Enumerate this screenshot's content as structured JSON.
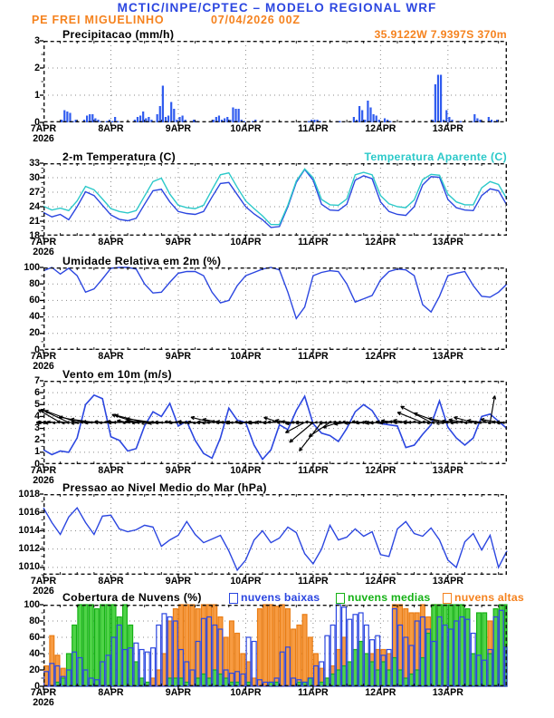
{
  "header": {
    "title": "MCTIC/INPE/CPTEC – MODELO REGIONAL WRF",
    "station": "PE FREI MIGUELINHO",
    "run_datetime": "07/04/2026 00Z",
    "location": "35.9122W 7.9397S 370m"
  },
  "colors": {
    "blue": "#2b46e0",
    "bar_blue": "#2f5bef",
    "cyan": "#2cc9c9",
    "orange": "#f5821e",
    "orange_fill": "#f79b42",
    "orange_stroke": "#e97d15",
    "green": "#15b115",
    "green_fill": "#4fd348",
    "green_stroke": "#15b115",
    "grid": "#8a8a8a",
    "frame": "#111111",
    "black": "#000000"
  },
  "x_axis": {
    "hours_total": 165,
    "line_step_hours": 3,
    "day_labels": [
      "7APR",
      "8APR",
      "9APR",
      "10APR",
      "11APR",
      "12APR",
      "13APR"
    ],
    "year_label": "2026"
  },
  "chart_data": [
    {
      "type": "bar",
      "id": "precipitation",
      "title": "Precipitacao (mm/h)",
      "right_label": "35.9122W 7.9397S 370m",
      "ylim": [
        0,
        3
      ],
      "yticks": [
        0,
        1,
        2,
        3
      ],
      "hourly_values": [
        0,
        0,
        0,
        0,
        0,
        0,
        0.1,
        0.45,
        0.4,
        0.35,
        0.05,
        0.1,
        0,
        0,
        0.1,
        0.25,
        0.3,
        0.3,
        0.15,
        0.1,
        0.05,
        0,
        0.05,
        0.1,
        0.05,
        0.2,
        0.05,
        0,
        0,
        0,
        0,
        0,
        0.1,
        0.2,
        0.25,
        0.4,
        0.15,
        0.2,
        0.1,
        0,
        0.3,
        0.6,
        1.35,
        0.2,
        0.25,
        0.75,
        0.5,
        0.1,
        0.2,
        0.25,
        0.1,
        0,
        0.05,
        0.1,
        0.05,
        0,
        0,
        0,
        0,
        0,
        0.1,
        0.2,
        0.25,
        0.1,
        0.15,
        0.2,
        0.1,
        0.55,
        0.5,
        0.5,
        0.1,
        0.05,
        0,
        0,
        0.05,
        0.1,
        0,
        0,
        0,
        0,
        0,
        0,
        0,
        0,
        0,
        0,
        0,
        0,
        0,
        0,
        0,
        0,
        0,
        0,
        0.05,
        0.1,
        0.1,
        0.1,
        0.05,
        0,
        0,
        0,
        0,
        0,
        0.05,
        0.05,
        0,
        0,
        0,
        0,
        0.2,
        0.1,
        0.6,
        0.45,
        0.1,
        0.8,
        0.55,
        0.3,
        0.25,
        0.1,
        0,
        0.15,
        0.1,
        0.05,
        0,
        0,
        0,
        0,
        0,
        0,
        0,
        0,
        0,
        0,
        0,
        0,
        0,
        0,
        0.1,
        1.4,
        1.75,
        1.75,
        0.1,
        0.45,
        0.2,
        0.1,
        0,
        0.05,
        0.05,
        0,
        0,
        0,
        0.05,
        0.3,
        0.15,
        0.1,
        0,
        0,
        0.2,
        0.1,
        0.05,
        0.1,
        0,
        0,
        0
      ]
    },
    {
      "type": "line",
      "id": "temperature",
      "title": "2-m Temperatura (C)",
      "right_label": "Temperatura Aparente (C)",
      "ylim": [
        18,
        33
      ],
      "yticks": [
        18,
        21,
        24,
        27,
        30,
        33
      ],
      "series": [
        {
          "name": "2-m Temperatura (C)",
          "color_key": "blue",
          "values": [
            22.8,
            21.9,
            22.4,
            21.3,
            24.0,
            27.1,
            26.3,
            24.3,
            22.3,
            21.4,
            21.1,
            21.6,
            24.5,
            27.3,
            27.6,
            25.0,
            23.0,
            22.6,
            22.4,
            23.0,
            26.0,
            28.8,
            29.0,
            26.5,
            24.0,
            22.5,
            21.3,
            19.7,
            19.9,
            24.0,
            29.0,
            31.7,
            29.5,
            24.5,
            23.3,
            23.2,
            24.5,
            29.5,
            30.4,
            29.8,
            25.0,
            23.0,
            22.4,
            22.2,
            24.0,
            28.5,
            30.2,
            30.1,
            25.5,
            23.8,
            23.3,
            23.2,
            26.3,
            27.7,
            27.3,
            24.3
          ]
        },
        {
          "name": "Temperatura Aparente (C)",
          "color_key": "cyan",
          "values": [
            24.1,
            23.3,
            23.7,
            23.2,
            25.2,
            28.2,
            27.5,
            25.6,
            23.6,
            23.0,
            22.7,
            23.2,
            26.2,
            29.2,
            29.9,
            26.6,
            24.3,
            23.8,
            23.6,
            24.3,
            27.5,
            30.6,
            31.0,
            28.0,
            25.2,
            23.6,
            22.1,
            20.3,
            20.3,
            24.3,
            29.3,
            31.8,
            30.0,
            25.5,
            24.4,
            24.3,
            25.6,
            30.6,
            31.1,
            30.6,
            26.3,
            24.6,
            24.0,
            23.8,
            25.4,
            29.6,
            30.7,
            30.5,
            26.6,
            25.0,
            24.4,
            24.4,
            27.9,
            29.2,
            28.6,
            25.6
          ]
        }
      ]
    },
    {
      "type": "line",
      "id": "humidity",
      "title": "Umidade Relativa em 2m (%)",
      "ylim": [
        0,
        100
      ],
      "yticks": [
        0,
        20,
        40,
        60,
        80,
        100
      ],
      "series": [
        {
          "name": "Umidade Relativa em 2m",
          "color_key": "blue",
          "values": [
            96,
            100,
            92,
            99,
            90,
            70,
            74,
            86,
            99,
            100,
            100,
            98,
            80,
            69,
            70,
            82,
            93,
            95,
            95,
            90,
            70,
            57,
            60,
            78,
            90,
            94,
            98,
            100,
            97,
            70,
            38,
            52,
            90,
            94,
            96,
            95,
            80,
            58,
            62,
            66,
            85,
            95,
            98,
            97,
            90,
            55,
            46,
            65,
            90,
            93,
            95,
            78,
            65,
            64,
            70,
            80
          ]
        }
      ]
    },
    {
      "type": "line+arrows",
      "id": "wind",
      "title": "Vento em 10m (m/s)",
      "ylim": [
        0,
        7
      ],
      "yticks": [
        0,
        1,
        2,
        3,
        4,
        5,
        6,
        7
      ],
      "arrow_baseline": 3.5,
      "series": [
        {
          "name": "Vento em 10m",
          "color_key": "blue",
          "values": [
            1.2,
            0.8,
            1.1,
            1.0,
            2.2,
            5.0,
            5.8,
            5.5,
            2.3,
            2.0,
            1.1,
            1.3,
            3.2,
            4.4,
            4.0,
            5.1,
            3.2,
            3.6,
            2.0,
            0.9,
            0.5,
            2.2,
            4.7,
            3.7,
            3.5,
            1.6,
            0.4,
            1.2,
            3.3,
            2.9,
            4.5,
            5.7,
            3.4,
            2.6,
            2.4,
            1.9,
            3.0,
            4.4,
            5.0,
            4.5,
            3.4,
            3.3,
            3.2,
            1.4,
            1.6,
            2.5,
            3.3,
            5.3,
            3.1,
            2.2,
            1.6,
            2.2,
            4.0,
            4.2,
            3.6,
            3.0
          ]
        }
      ],
      "arrows": [
        [
          0,
          180,
          8
        ],
        [
          3,
          185,
          8
        ],
        [
          6,
          150,
          28
        ],
        [
          9,
          155,
          34
        ],
        [
          12,
          160,
          38
        ],
        [
          15,
          168,
          30
        ],
        [
          18,
          172,
          26
        ],
        [
          21,
          178,
          22
        ],
        [
          24,
          180,
          18
        ],
        [
          27,
          176,
          14
        ],
        [
          30,
          170,
          12
        ],
        [
          33,
          162,
          28
        ],
        [
          36,
          166,
          34
        ],
        [
          39,
          172,
          30
        ],
        [
          42,
          178,
          40
        ],
        [
          45,
          182,
          24
        ],
        [
          48,
          178,
          12
        ],
        [
          51,
          174,
          10
        ],
        [
          54,
          182,
          10
        ],
        [
          57,
          180,
          8
        ],
        [
          60,
          166,
          24
        ],
        [
          63,
          170,
          20
        ],
        [
          66,
          176,
          14
        ],
        [
          69,
          180,
          12
        ],
        [
          72,
          182,
          9
        ],
        [
          75,
          180,
          8
        ],
        [
          78,
          178,
          8
        ],
        [
          81,
          180,
          9
        ],
        [
          84,
          162,
          18
        ],
        [
          87,
          170,
          14
        ],
        [
          90,
          186,
          12
        ],
        [
          93,
          208,
          24
        ],
        [
          96,
          220,
          34
        ],
        [
          99,
          232,
          40
        ],
        [
          102,
          214,
          28
        ],
        [
          105,
          198,
          18
        ],
        [
          108,
          188,
          14
        ],
        [
          111,
          184,
          12
        ],
        [
          114,
          180,
          10
        ],
        [
          117,
          178,
          10
        ],
        [
          120,
          182,
          12
        ],
        [
          123,
          178,
          14
        ],
        [
          126,
          174,
          18
        ],
        [
          129,
          170,
          14
        ],
        [
          132,
          176,
          12
        ],
        [
          135,
          158,
          30
        ],
        [
          138,
          152,
          38
        ],
        [
          141,
          160,
          30
        ],
        [
          144,
          168,
          22
        ],
        [
          147,
          174,
          16
        ],
        [
          150,
          170,
          18
        ],
        [
          153,
          165,
          22
        ],
        [
          156,
          172,
          16
        ],
        [
          159,
          80,
          30
        ],
        [
          162,
          170,
          20
        ],
        [
          165,
          178,
          12
        ]
      ]
    },
    {
      "type": "line",
      "id": "pressure",
      "title": "Pressao ao Nivel Medio do Mar (hPa)",
      "ylim": [
        1009.2,
        1018
      ],
      "yticks": [
        1010,
        1012,
        1014,
        1016,
        1018
      ],
      "series": [
        {
          "name": "Pressao ao Nivel Medio do Mar",
          "color_key": "blue",
          "values": [
            1016.5,
            1014.9,
            1013.6,
            1015.5,
            1016.5,
            1014.9,
            1013.6,
            1015.6,
            1015.7,
            1014.2,
            1013.9,
            1014.1,
            1014.6,
            1014.4,
            1012.3,
            1013.0,
            1013.5,
            1015.0,
            1013.6,
            1012.7,
            1013.1,
            1013.5,
            1011.8,
            1009.7,
            1010.8,
            1013.0,
            1014.0,
            1012.7,
            1013.2,
            1014.4,
            1013.8,
            1011.5,
            1010.4,
            1012.0,
            1014.6,
            1013.0,
            1013.3,
            1014.2,
            1013.4,
            1013.9,
            1011.4,
            1011.2,
            1014.2,
            1015.0,
            1013.7,
            1013.4,
            1014.3,
            1013.0,
            1010.8,
            1010.0,
            1012.8,
            1013.7,
            1011.9,
            1013.5,
            1010.0,
            1011.8
          ]
        }
      ]
    },
    {
      "type": "cloudbar",
      "id": "clouds",
      "title": "Cobertura de Nuvens (%)",
      "ylim": [
        0,
        100
      ],
      "yticks": [
        0,
        20,
        40,
        60,
        80,
        100
      ],
      "hours_step": 2,
      "legend": [
        {
          "label": "nuvens baixas",
          "color_key": "blue"
        },
        {
          "label": "nuvens medias",
          "color_key": "green"
        },
        {
          "label": "nuvens altas",
          "color_key": "orange"
        }
      ],
      "series": [
        {
          "name": "nuvens altas",
          "color_key": "orange",
          "values": [
            25,
            62,
            38,
            22,
            10,
            5,
            15,
            10,
            5,
            5,
            5,
            10,
            5,
            5,
            5,
            10,
            10,
            5,
            5,
            10,
            20,
            40,
            80,
            95,
            100,
            100,
            100,
            95,
            100,
            100,
            100,
            85,
            60,
            80,
            65,
            40,
            30,
            10,
            95,
            100,
            100,
            98,
            100,
            95,
            70,
            75,
            88,
            60,
            40,
            22,
            10,
            25,
            45,
            60,
            20,
            10,
            15,
            25,
            40,
            45,
            45,
            40,
            100,
            100,
            95,
            90,
            90,
            100,
            85,
            100,
            100,
            60,
            50,
            30,
            20,
            10,
            5,
            30,
            30,
            80,
            85,
            80,
            60
          ]
        },
        {
          "name": "nuvens medias",
          "color_key": "green",
          "values": [
            0,
            0,
            5,
            10,
            40,
            75,
            100,
            100,
            100,
            95,
            100,
            100,
            100,
            85,
            100,
            75,
            30,
            10,
            5,
            0,
            0,
            0,
            10,
            10,
            10,
            5,
            0,
            10,
            15,
            10,
            20,
            15,
            10,
            5,
            5,
            0,
            5,
            0,
            0,
            0,
            5,
            5,
            0,
            0,
            0,
            5,
            5,
            10,
            0,
            5,
            10,
            15,
            20,
            25,
            30,
            45,
            55,
            40,
            30,
            20,
            30,
            20,
            35,
            20,
            10,
            15,
            20,
            35,
            65,
            100,
            100,
            100,
            100,
            100,
            100,
            95,
            40,
            90,
            90,
            40,
            95,
            100,
            100
          ]
        },
        {
          "name": "nuvens baixas",
          "color_key": "blue",
          "values": [
            18,
            28,
            25,
            12,
            20,
            42,
            35,
            20,
            10,
            8,
            30,
            38,
            60,
            75,
            45,
            47,
            53,
            45,
            42,
            47,
            75,
            89,
            85,
            80,
            45,
            30,
            20,
            55,
            83,
            85,
            75,
            70,
            20,
            16,
            18,
            15,
            60,
            55,
            8,
            5,
            5,
            10,
            42,
            48,
            10,
            8,
            5,
            10,
            25,
            30,
            62,
            75,
            100,
            97,
            82,
            88,
            90,
            75,
            57,
            62,
            38,
            45,
            95,
            75,
            60,
            50,
            80,
            85,
            70,
            55,
            85,
            75,
            70,
            80,
            85,
            82,
            65,
            38,
            32,
            45,
            85,
            93,
            48
          ]
        }
      ]
    }
  ]
}
